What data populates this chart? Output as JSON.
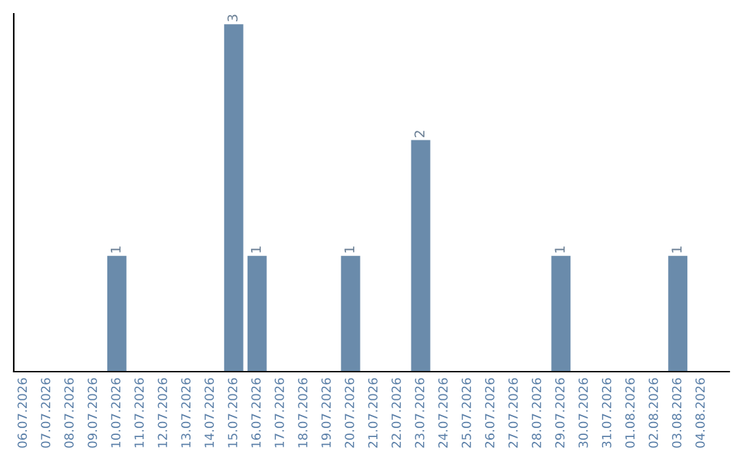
{
  "chart_data": {
    "type": "bar",
    "categories": [
      "06.07.2026",
      "07.07.2026",
      "08.07.2026",
      "09.07.2026",
      "10.07.2026",
      "11.07.2026",
      "12.07.2026",
      "13.07.2026",
      "14.07.2026",
      "15.07.2026",
      "16.07.2026",
      "17.07.2026",
      "18.07.2026",
      "19.07.2026",
      "20.07.2026",
      "21.07.2026",
      "22.07.2026",
      "23.07.2026",
      "24.07.2026",
      "25.07.2026",
      "26.07.2026",
      "27.07.2026",
      "28.07.2026",
      "29.07.2026",
      "30.07.2026",
      "31.07.2026",
      "01.08.2026",
      "02.08.2026",
      "03.08.2026",
      "04.08.2026"
    ],
    "values": [
      0,
      0,
      0,
      0,
      1,
      0,
      0,
      0,
      0,
      3,
      1,
      0,
      0,
      0,
      1,
      0,
      0,
      2,
      0,
      0,
      0,
      0,
      0,
      1,
      0,
      0,
      0,
      0,
      1,
      0
    ],
    "value_labels": [
      null,
      null,
      null,
      null,
      "1",
      null,
      null,
      null,
      null,
      "3",
      "1",
      null,
      null,
      null,
      "1",
      null,
      null,
      "2",
      null,
      null,
      null,
      null,
      null,
      "1",
      null,
      null,
      null,
      null,
      "1",
      null
    ],
    "color": "#6a8bab",
    "tick_labels": "x",
    "grid": false,
    "legend": false
  }
}
